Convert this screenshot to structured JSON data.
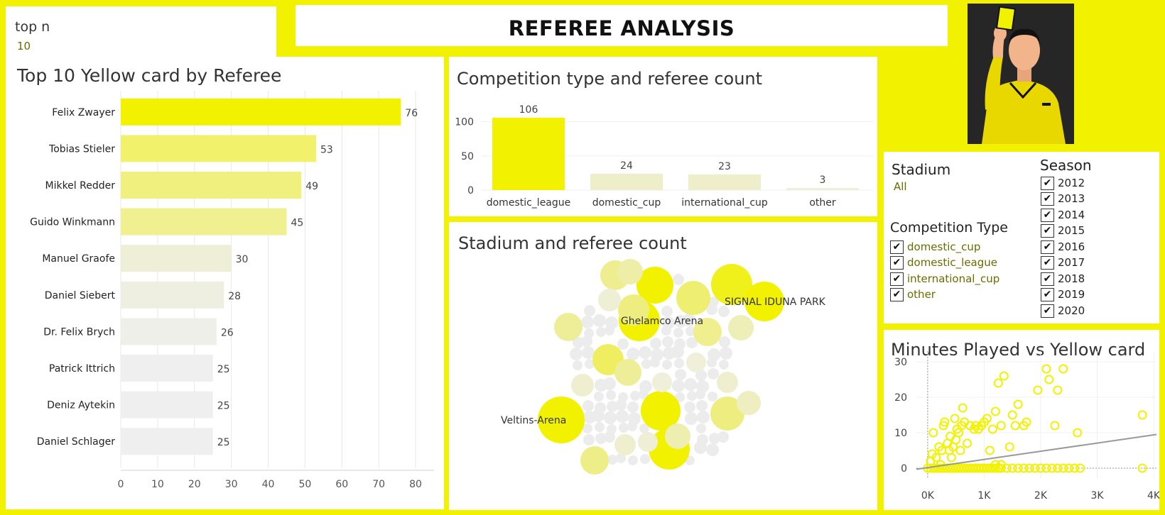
{
  "page_title": "REFEREE ANALYSIS",
  "top_n": {
    "label": "top n",
    "value": "10"
  },
  "colors": {
    "background": "#f2f200",
    "accent": "#f2f200",
    "panel": "#ffffff"
  },
  "logo": {
    "icon": "referee-yellow-card-icon"
  },
  "filters": {
    "stadium": {
      "label": "Stadium",
      "value": "All"
    },
    "competition_type": {
      "label": "Competition Type",
      "options": [
        "domestic_cup",
        "domestic_league",
        "international_cup",
        "other"
      ]
    },
    "season": {
      "label": "Season",
      "options": [
        "2012",
        "2013",
        "2014",
        "2015",
        "2016",
        "2017",
        "2018",
        "2019",
        "2020"
      ]
    }
  },
  "chart_data": [
    {
      "id": "yellow_by_referee",
      "type": "bar",
      "orientation": "horizontal",
      "title": "Top 10 Yellow card by Referee",
      "categories": [
        "Felix Zwayer",
        "Tobias Stieler",
        "Mikkel Redder",
        "Guido Winkmann",
        "Manuel Graofe",
        "Daniel Siebert",
        "Dr. Felix Brych",
        "Patrick Ittrich",
        "Deniz Aytekin",
        "Daniel Schlager"
      ],
      "values": [
        76,
        53,
        49,
        45,
        30,
        28,
        26,
        25,
        25,
        25
      ],
      "xlim": [
        0,
        85
      ],
      "xticks": [
        "0",
        "10",
        "20",
        "30",
        "40",
        "50",
        "60",
        "70",
        "80"
      ],
      "grid": true
    },
    {
      "id": "competition_type",
      "type": "bar",
      "title": "Competition type and referee count",
      "categories": [
        "domestic_league",
        "domestic_cup",
        "international_cup",
        "other"
      ],
      "values": [
        106,
        24,
        23,
        3
      ],
      "ylim": [
        0,
        110
      ],
      "yticks": [
        "0",
        "50",
        "100"
      ]
    },
    {
      "id": "stadium_referee",
      "type": "bubble",
      "title": "Stadium and referee count",
      "labeled": [
        "Veltins-Arena",
        "Ghelamco Arena",
        "SIGNAL IDUNA PARK"
      ]
    },
    {
      "id": "minutes_vs_yellow",
      "type": "scatter",
      "title": "Minutes Played vs Yellow card",
      "xticks": [
        "0K",
        "1K",
        "2K",
        "3K",
        "4K"
      ],
      "yticks": [
        "0",
        "10",
        "20",
        "30"
      ],
      "xlim": [
        -200,
        4050
      ],
      "ylim": [
        -3,
        33
      ],
      "trendline": {
        "x": [
          -200,
          4050
        ],
        "y": [
          -0.3,
          9.5
        ]
      },
      "points": [
        [
          50,
          2
        ],
        [
          80,
          4
        ],
        [
          100,
          10
        ],
        [
          150,
          3
        ],
        [
          200,
          6
        ],
        [
          230,
          1
        ],
        [
          250,
          5
        ],
        [
          280,
          12
        ],
        [
          300,
          13
        ],
        [
          350,
          7
        ],
        [
          380,
          5
        ],
        [
          400,
          9
        ],
        [
          420,
          3
        ],
        [
          450,
          6
        ],
        [
          480,
          14
        ],
        [
          500,
          8
        ],
        [
          520,
          11
        ],
        [
          550,
          10
        ],
        [
          580,
          5
        ],
        [
          600,
          12
        ],
        [
          620,
          17
        ],
        [
          650,
          13
        ],
        [
          700,
          7
        ],
        [
          750,
          12
        ],
        [
          820,
          11
        ],
        [
          850,
          12
        ],
        [
          900,
          11
        ],
        [
          950,
          12
        ],
        [
          1000,
          13
        ],
        [
          1050,
          14
        ],
        [
          1100,
          5
        ],
        [
          1150,
          11
        ],
        [
          1200,
          16
        ],
        [
          1250,
          24
        ],
        [
          1300,
          12
        ],
        [
          1350,
          26
        ],
        [
          1450,
          6
        ],
        [
          1500,
          15
        ],
        [
          1550,
          12
        ],
        [
          1600,
          18
        ],
        [
          1700,
          12
        ],
        [
          1750,
          13
        ],
        [
          1950,
          22
        ],
        [
          2100,
          28
        ],
        [
          2150,
          25
        ],
        [
          2250,
          12
        ],
        [
          2300,
          22
        ],
        [
          2400,
          28
        ],
        [
          2650,
          10
        ],
        [
          3800,
          15
        ],
        [
          3800,
          0
        ],
        [
          0,
          0
        ],
        [
          50,
          0
        ],
        [
          100,
          0
        ],
        [
          150,
          0
        ],
        [
          200,
          0
        ],
        [
          250,
          0
        ],
        [
          300,
          0
        ],
        [
          350,
          0
        ],
        [
          400,
          0
        ],
        [
          450,
          0
        ],
        [
          500,
          0
        ],
        [
          550,
          0
        ],
        [
          600,
          0
        ],
        [
          650,
          0
        ],
        [
          700,
          0
        ],
        [
          750,
          0
        ],
        [
          800,
          0
        ],
        [
          850,
          0
        ],
        [
          900,
          0
        ],
        [
          950,
          0
        ],
        [
          1000,
          0
        ],
        [
          1050,
          0
        ],
        [
          1100,
          0
        ],
        [
          1150,
          0
        ],
        [
          1200,
          0
        ],
        [
          1250,
          0
        ],
        [
          1300,
          0
        ],
        [
          1400,
          0
        ],
        [
          1500,
          0
        ],
        [
          1600,
          0
        ],
        [
          1700,
          0
        ],
        [
          1800,
          0
        ],
        [
          1900,
          0
        ],
        [
          2000,
          0
        ],
        [
          2100,
          0
        ],
        [
          2200,
          0
        ],
        [
          2300,
          0
        ],
        [
          2400,
          0
        ],
        [
          2500,
          0
        ],
        [
          2600,
          0
        ],
        [
          2700,
          0
        ],
        [
          1200,
          1
        ],
        [
          1300,
          1
        ]
      ]
    }
  ]
}
